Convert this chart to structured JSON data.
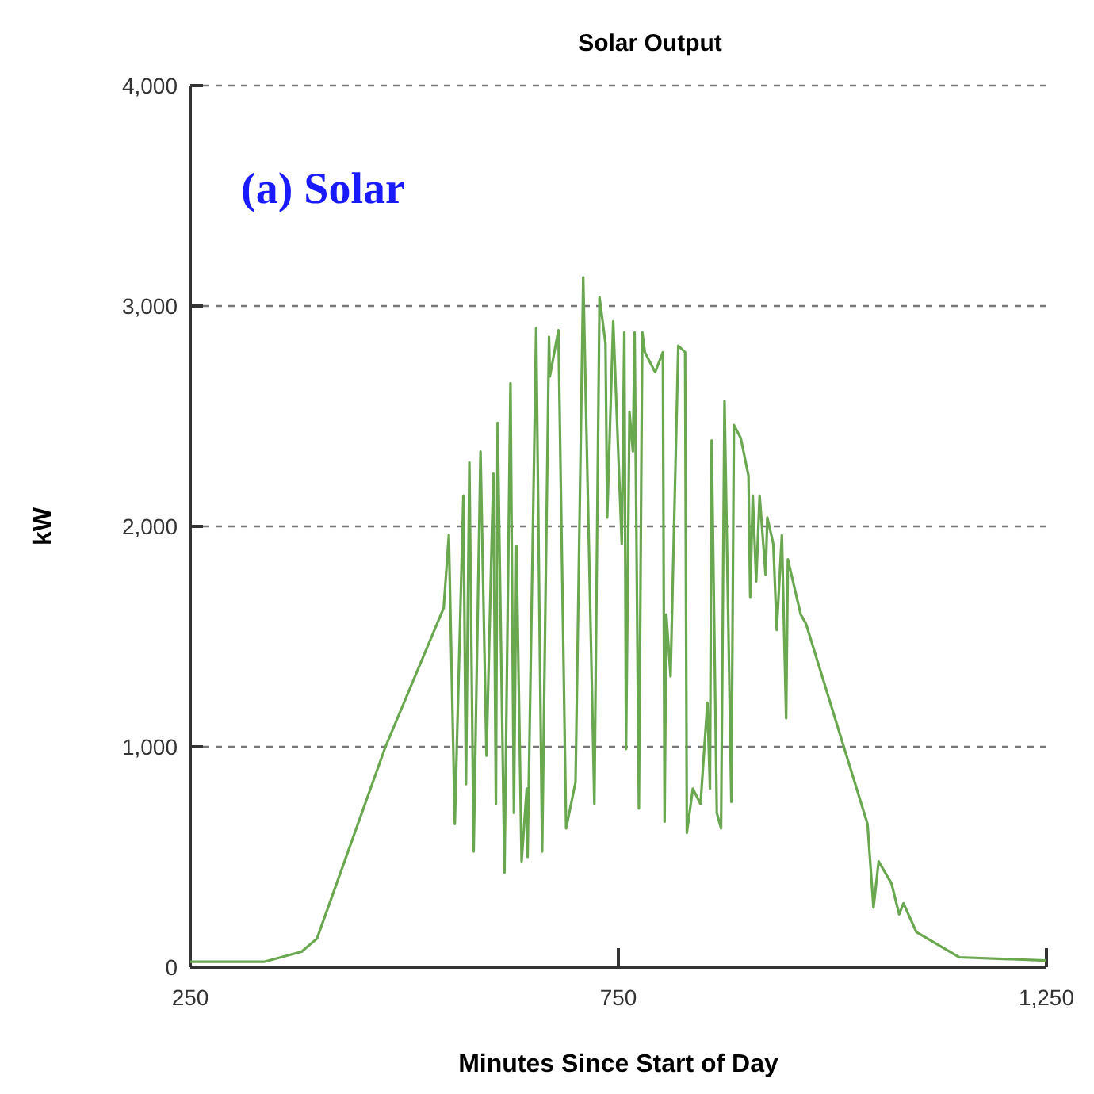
{
  "chart_data": {
    "type": "line",
    "title": "Solar Output",
    "xlabel": "Minutes Since Start of Day",
    "ylabel": "kW",
    "annotations": [
      "(a) Solar"
    ],
    "xlim": [
      250,
      1250
    ],
    "ylim": [
      0,
      4000
    ],
    "xticks": [
      250,
      750,
      {
        "value": 1250,
        "label": "1,250"
      }
    ],
    "yticks": [
      0,
      {
        "value": 1000,
        "label": "1,000"
      },
      {
        "value": 2000,
        "label": "2,000"
      },
      {
        "value": 3000,
        "label": "3,000"
      },
      {
        "value": 4000,
        "label": "4,000"
      }
    ],
    "grid": "y",
    "marker": "none",
    "line_style": "solid",
    "series": [
      {
        "color": "#6aa84f",
        "x": [
          250,
          337,
          380,
          398,
          478,
          546,
          552,
          559,
          569,
          572,
          576,
          581,
          589,
          596,
          604,
          607,
          609,
          617,
          624,
          628,
          631,
          637,
          643,
          644,
          654,
          661,
          669,
          670,
          680,
          689,
          700,
          709,
          722,
          728,
          735,
          737,
          744,
          754,
          757,
          759,
          763,
          767,
          769,
          774,
          778,
          781,
          793,
          802,
          804,
          806,
          811,
          820,
          828,
          830,
          837,
          846,
          854,
          857,
          859,
          865,
          870,
          874,
          882,
          885,
          893,
          902,
          904,
          907,
          911,
          915,
          922,
          924,
          931,
          935,
          941,
          946,
          948,
          963,
          969,
          1041,
          1048,
          1054,
          1069,
          1078,
          1083,
          1098,
          1148,
          1250
        ],
        "values": [
          25,
          25,
          70,
          130,
          1000,
          1630,
          1960,
          650,
          2140,
          830,
          2290,
          525,
          2340,
          960,
          2240,
          740,
          2470,
          430,
          2650,
          700,
          1910,
          480,
          810,
          500,
          2900,
          525,
          2860,
          2680,
          2890,
          630,
          840,
          3130,
          740,
          3040,
          2830,
          2040,
          2930,
          1920,
          2880,
          990,
          2520,
          2340,
          2880,
          720,
          2880,
          2790,
          2700,
          2790,
          660,
          1600,
          1320,
          2820,
          2790,
          610,
          810,
          740,
          1200,
          810,
          2390,
          700,
          630,
          2570,
          750,
          2460,
          2400,
          2230,
          1680,
          2140,
          1750,
          2140,
          1780,
          2040,
          1920,
          1530,
          1960,
          1130,
          1850,
          1600,
          1560,
          650,
          270,
          480,
          380,
          240,
          290,
          160,
          45,
          30
        ]
      }
    ]
  }
}
